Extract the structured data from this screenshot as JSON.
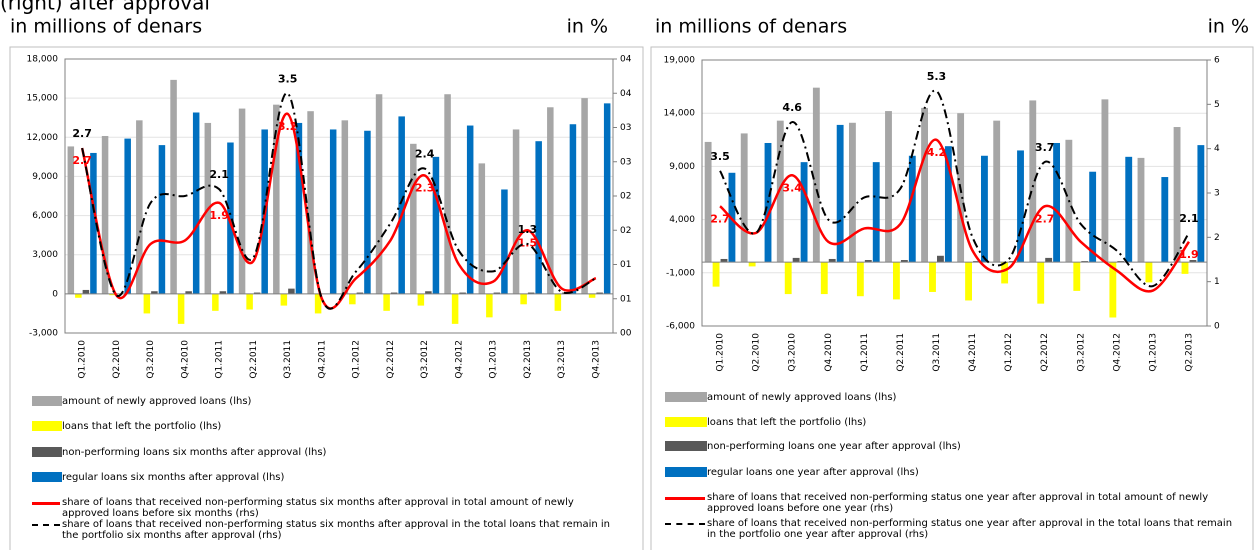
{
  "header": "(right) after approval",
  "chart_data": [
    {
      "type": "bar",
      "y_label": "in millions of denars",
      "y2_label": "in %",
      "categories": [
        "Q1.2010",
        "Q2.2010",
        "Q3.2010",
        "Q4.2010",
        "Q1.2011",
        "Q2.2011",
        "Q3.2011",
        "Q4.2011",
        "Q1.2012",
        "Q2.2012",
        "Q3.2012",
        "Q4.2012",
        "Q1.2013",
        "Q2.2013",
        "Q3.2013",
        "Q4.2013"
      ],
      "ylim": [
        -3000,
        18000
      ],
      "yticks": [
        {
          "value": -3000,
          "label": "-3,000"
        },
        0,
        {
          "value": 3000,
          "label": "3,000"
        },
        {
          "value": 6000,
          "label": "6,000"
        },
        {
          "value": 9000,
          "label": "9,000"
        },
        {
          "value": 12000,
          "label": "12,000"
        },
        {
          "value": 15000,
          "label": "15,000"
        },
        {
          "value": 18000,
          "label": "18,000"
        }
      ],
      "y2lim": [
        0,
        4
      ],
      "y2ticks": [
        {
          "value": 0,
          "label": "00"
        },
        {
          "value": 0.5,
          "label": "01"
        },
        {
          "value": 1,
          "label": "01"
        },
        {
          "value": 1.5,
          "label": "02"
        },
        {
          "value": 2,
          "label": "02"
        },
        {
          "value": 2.5,
          "label": "03"
        },
        {
          "value": 3,
          "label": "03"
        },
        {
          "value": 3.5,
          "label": "04"
        },
        {
          "value": 4,
          "label": "04"
        }
      ],
      "grid": true,
      "series": [
        {
          "name": "amount of newly approved loans (lhs)",
          "kind": "bar",
          "color": "#a6a6a6",
          "values": [
            11300,
            12100,
            13300,
            16400,
            13100,
            14200,
            14500,
            14000,
            13300,
            15300,
            11500,
            15300,
            10000,
            12600,
            14300,
            15000
          ]
        },
        {
          "name": "loans that left the portfolio (lhs)",
          "kind": "bar",
          "color": "#ffff00",
          "values": [
            -300,
            -100,
            -1500,
            -2300,
            -1300,
            -1200,
            -900,
            -1500,
            -800,
            -1300,
            -900,
            -2300,
            -1800,
            -800,
            -1300,
            -300
          ]
        },
        {
          "name": "non-performing loans six months after approval (lhs)",
          "kind": "bar",
          "color": "#595959",
          "values": [
            300,
            0,
            200,
            200,
            200,
            100,
            400,
            0,
            100,
            100,
            200,
            100,
            100,
            100,
            100,
            100
          ]
        },
        {
          "name": "regular loans six months after approval (lhs)",
          "kind": "bar",
          "color": "#0070c0",
          "values": [
            10800,
            11900,
            11400,
            13900,
            11600,
            12600,
            13100,
            12600,
            12500,
            13600,
            10500,
            12900,
            8000,
            11700,
            13000,
            14600
          ]
        },
        {
          "name": "share of loans that received non-performing status six months after approval in total amount of newly approved loans before six months (rhs)",
          "kind": "line",
          "axis": "y2",
          "color": "#ff0000",
          "dashed": false,
          "values": [
            2.7,
            0.55,
            1.3,
            1.35,
            1.9,
            1.05,
            3.2,
            0.5,
            0.8,
            1.35,
            2.3,
            1.0,
            0.75,
            1.5,
            0.65,
            0.8
          ],
          "value_labels": [
            "2.7",
            null,
            null,
            null,
            "1.9",
            null,
            "3.2",
            null,
            null,
            null,
            "2.3",
            null,
            null,
            "1.5",
            null,
            null
          ]
        },
        {
          "name": "share of loans that received non-performing status six months after approval in the total loans that remain in the portfolio six months after approval (rhs)",
          "kind": "line",
          "axis": "y2",
          "color": "#000000",
          "dashed": true,
          "values": [
            2.7,
            0.55,
            1.9,
            2.0,
            2.1,
            1.1,
            3.5,
            0.5,
            0.9,
            1.6,
            2.4,
            1.2,
            0.9,
            1.3,
            0.6,
            0.8
          ],
          "value_labels": [
            "2.7",
            null,
            null,
            null,
            "2.1",
            null,
            "3.5",
            null,
            null,
            null,
            "2.4",
            null,
            null,
            "1.3",
            null,
            null
          ]
        }
      ]
    },
    {
      "type": "bar",
      "y_label": "in millions of denars",
      "y2_label": "in %",
      "categories": [
        "Q1.2010",
        "Q2.2010",
        "Q3.2010",
        "Q4.2010",
        "Q1.2011",
        "Q2.2011",
        "Q3.2011",
        "Q4.2011",
        "Q1.2012",
        "Q2.2012",
        "Q3.2012",
        "Q4.2012",
        "Q1.2013",
        "Q2.2013"
      ],
      "ylim": [
        -6000,
        19000
      ],
      "yticks": [
        {
          "value": -6000,
          "label": "-6,000"
        },
        {
          "value": -1000,
          "label": "-1,000"
        },
        {
          "value": 4000,
          "label": "4,000"
        },
        {
          "value": 9000,
          "label": "9,000"
        },
        {
          "value": 14000,
          "label": "14,000"
        },
        {
          "value": 19000,
          "label": "19,000"
        }
      ],
      "y2lim": [
        0,
        6
      ],
      "y2ticks": [
        0,
        1,
        2,
        3,
        4,
        5,
        6
      ],
      "grid": true,
      "series": [
        {
          "name": "amount of newly approved loans (lhs)",
          "kind": "bar",
          "color": "#a6a6a6",
          "values": [
            11300,
            12100,
            13300,
            16400,
            13100,
            14200,
            14500,
            14000,
            13300,
            15200,
            11500,
            15300,
            9800,
            12700
          ]
        },
        {
          "name": "loans that left the portfolio (lhs)",
          "kind": "bar",
          "color": "#ffff00",
          "values": [
            -2300,
            -400,
            -3000,
            -3000,
            -3200,
            -3500,
            -2800,
            -3600,
            -2000,
            -3900,
            -2700,
            -5200,
            -1900,
            -1100
          ]
        },
        {
          "name": "non-performing loans one year after approval (lhs)",
          "kind": "bar",
          "color": "#595959",
          "values": [
            300,
            0,
            400,
            300,
            200,
            200,
            600,
            100,
            100,
            400,
            100,
            100,
            0,
            200
          ]
        },
        {
          "name": "regular loans one year after approval (lhs)",
          "kind": "bar",
          "color": "#0070c0",
          "values": [
            8400,
            11200,
            9400,
            12900,
            9400,
            10000,
            10900,
            10000,
            10500,
            11200,
            8500,
            9900,
            8000,
            11000
          ]
        },
        {
          "name": "share of loans that received non-performing status one year after approval in total amount of newly approved loans before one year (rhs)",
          "kind": "line",
          "axis": "y2",
          "color": "#ff0000",
          "dashed": false,
          "values": [
            2.7,
            2.1,
            3.4,
            1.9,
            2.2,
            2.3,
            4.2,
            1.7,
            1.3,
            2.7,
            1.9,
            1.25,
            0.8,
            1.9
          ],
          "value_labels": [
            "2.7",
            null,
            "3.4",
            null,
            null,
            null,
            "4.2",
            null,
            null,
            "2.7",
            null,
            null,
            null,
            "1.9"
          ]
        },
        {
          "name": "share of loans that received non-performing status one year after approval in the total loans that remain in the portfolio one year after approval (rhs)",
          "kind": "line",
          "axis": "y2",
          "color": "#000000",
          "dashed": true,
          "values": [
            3.5,
            2.1,
            4.6,
            2.4,
            2.9,
            3.1,
            5.3,
            2.0,
            1.5,
            3.7,
            2.3,
            1.7,
            0.9,
            2.1
          ],
          "value_labels": [
            "3.5",
            null,
            "4.6",
            null,
            null,
            null,
            "5.3",
            null,
            null,
            "3.7",
            null,
            null,
            null,
            "2.1"
          ]
        }
      ]
    }
  ]
}
